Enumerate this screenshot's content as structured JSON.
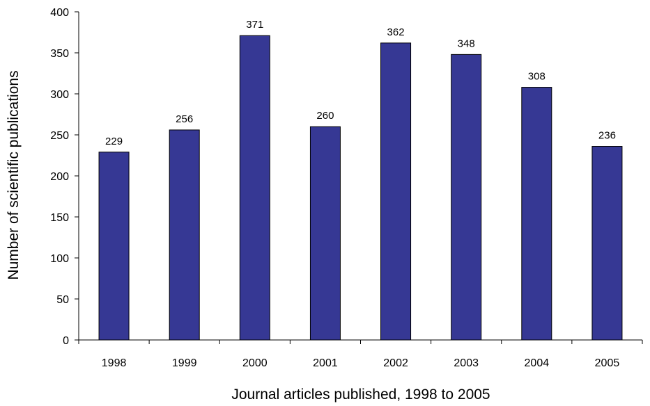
{
  "chart_data": {
    "type": "bar",
    "categories": [
      "1998",
      "1999",
      "2000",
      "2001",
      "2002",
      "2003",
      "2004",
      "2005"
    ],
    "values": [
      229,
      256,
      371,
      260,
      362,
      348,
      308,
      236
    ],
    "data_labels": [
      "229",
      "256",
      "371",
      "260",
      "362",
      "348",
      "308",
      "236"
    ],
    "title": "",
    "xlabel": "Journal articles published, 1998 to 2005",
    "ylabel": "Number of scientific publications",
    "ylim": [
      0,
      400
    ],
    "yticks": [
      0,
      50,
      100,
      150,
      200,
      250,
      300,
      350,
      400
    ],
    "ytick_labels": [
      "0",
      "50",
      "100",
      "150",
      "200",
      "250",
      "300",
      "350",
      "400"
    ],
    "grid": false,
    "legend": "none",
    "colors": {
      "bar": "#363894",
      "bar_outline": "#000000",
      "axis": "#000000"
    }
  }
}
